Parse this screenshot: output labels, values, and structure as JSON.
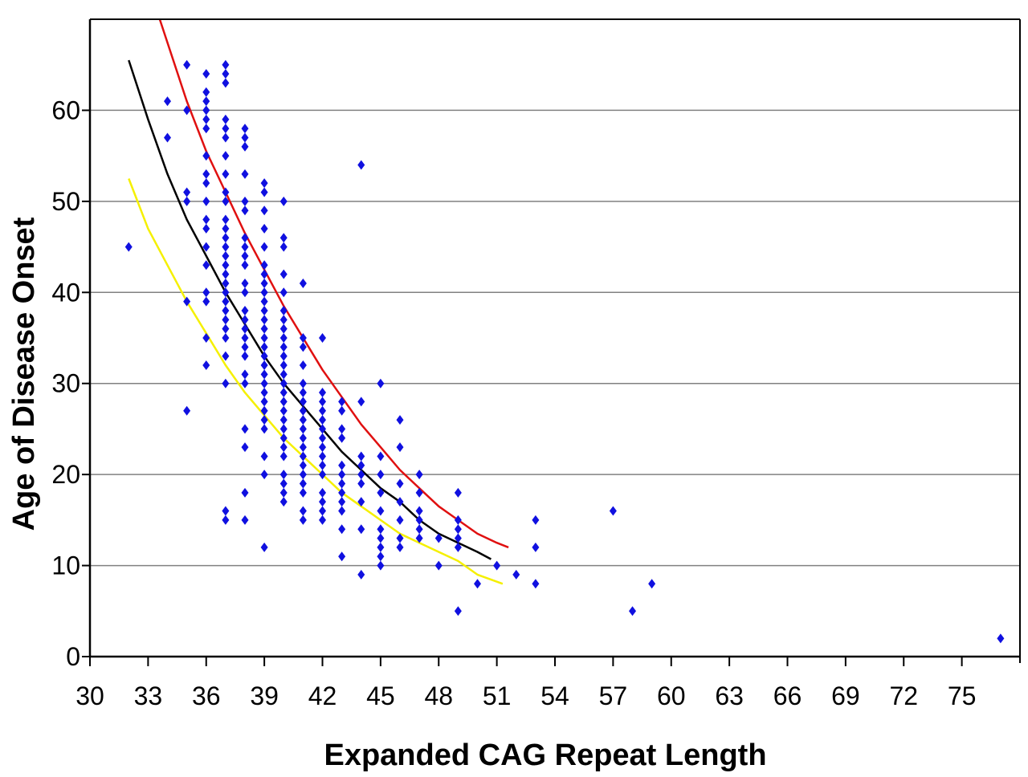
{
  "chart_data": {
    "type": "scatter",
    "title": "",
    "xlabel": "Expanded CAG Repeat Length",
    "ylabel": "Age of Disease Onset",
    "xlim": [
      30,
      78
    ],
    "ylim": [
      0,
      70
    ],
    "x_tick_labels": [
      "30",
      "33",
      "36",
      "39",
      "42",
      "45",
      "48",
      "51",
      "54",
      "57",
      "60",
      "63",
      "66",
      "69",
      "72",
      "75"
    ],
    "y_tick_labels": [
      "0",
      "10",
      "20",
      "30",
      "40",
      "50",
      "60"
    ],
    "grid": "horizontal",
    "legend": "none",
    "series": [
      {
        "kind": "points",
        "color": "#1010e0",
        "marker": "diamond",
        "points": [
          [
            32,
            45
          ],
          [
            34,
            61
          ],
          [
            34,
            57
          ],
          [
            35,
            65
          ],
          [
            35,
            60
          ],
          [
            35,
            51
          ],
          [
            35,
            50
          ],
          [
            35,
            39
          ],
          [
            35,
            27
          ],
          [
            36,
            64
          ],
          [
            36,
            62
          ],
          [
            36,
            61
          ],
          [
            36,
            60
          ],
          [
            36,
            59
          ],
          [
            36,
            58
          ],
          [
            36,
            55
          ],
          [
            36,
            53
          ],
          [
            36,
            52
          ],
          [
            36,
            50
          ],
          [
            36,
            48
          ],
          [
            36,
            47
          ],
          [
            36,
            45
          ],
          [
            36,
            43
          ],
          [
            36,
            40
          ],
          [
            36,
            39
          ],
          [
            36,
            35
          ],
          [
            36,
            32
          ],
          [
            37,
            65
          ],
          [
            37,
            64
          ],
          [
            37,
            63
          ],
          [
            37,
            59
          ],
          [
            37,
            58
          ],
          [
            37,
            57
          ],
          [
            37,
            55
          ],
          [
            37,
            53
          ],
          [
            37,
            51
          ],
          [
            37,
            50
          ],
          [
            37,
            48
          ],
          [
            37,
            47
          ],
          [
            37,
            46
          ],
          [
            37,
            45
          ],
          [
            37,
            44
          ],
          [
            37,
            43
          ],
          [
            37,
            42
          ],
          [
            37,
            41
          ],
          [
            37,
            40
          ],
          [
            37,
            39
          ],
          [
            37,
            38
          ],
          [
            37,
            37
          ],
          [
            37,
            36
          ],
          [
            37,
            35
          ],
          [
            37,
            33
          ],
          [
            37,
            30
          ],
          [
            37,
            16
          ],
          [
            37,
            15
          ],
          [
            38,
            58
          ],
          [
            38,
            57
          ],
          [
            38,
            56
          ],
          [
            38,
            53
          ],
          [
            38,
            50
          ],
          [
            38,
            49
          ],
          [
            38,
            46
          ],
          [
            38,
            45
          ],
          [
            38,
            44
          ],
          [
            38,
            43
          ],
          [
            38,
            41
          ],
          [
            38,
            40
          ],
          [
            38,
            38
          ],
          [
            38,
            37
          ],
          [
            38,
            36
          ],
          [
            38,
            35
          ],
          [
            38,
            34
          ],
          [
            38,
            33
          ],
          [
            38,
            31
          ],
          [
            38,
            30
          ],
          [
            38,
            25
          ],
          [
            38,
            23
          ],
          [
            38,
            18
          ],
          [
            38,
            15
          ],
          [
            39,
            52
          ],
          [
            39,
            51
          ],
          [
            39,
            49
          ],
          [
            39,
            47
          ],
          [
            39,
            45
          ],
          [
            39,
            43
          ],
          [
            39,
            42
          ],
          [
            39,
            41
          ],
          [
            39,
            40
          ],
          [
            39,
            39
          ],
          [
            39,
            38
          ],
          [
            39,
            37
          ],
          [
            39,
            36
          ],
          [
            39,
            35
          ],
          [
            39,
            34
          ],
          [
            39,
            33
          ],
          [
            39,
            32
          ],
          [
            39,
            31
          ],
          [
            39,
            30
          ],
          [
            39,
            29
          ],
          [
            39,
            28
          ],
          [
            39,
            27
          ],
          [
            39,
            26
          ],
          [
            39,
            25
          ],
          [
            39,
            22
          ],
          [
            39,
            20
          ],
          [
            39,
            12
          ],
          [
            40,
            50
          ],
          [
            40,
            46
          ],
          [
            40,
            45
          ],
          [
            40,
            42
          ],
          [
            40,
            40
          ],
          [
            40,
            38
          ],
          [
            40,
            37
          ],
          [
            40,
            36
          ],
          [
            40,
            35
          ],
          [
            40,
            34
          ],
          [
            40,
            33
          ],
          [
            40,
            32
          ],
          [
            40,
            31
          ],
          [
            40,
            30
          ],
          [
            40,
            29
          ],
          [
            40,
            28
          ],
          [
            40,
            27
          ],
          [
            40,
            26
          ],
          [
            40,
            25
          ],
          [
            40,
            24
          ],
          [
            40,
            23
          ],
          [
            40,
            22
          ],
          [
            40,
            20
          ],
          [
            40,
            19
          ],
          [
            40,
            18
          ],
          [
            40,
            17
          ],
          [
            41,
            41
          ],
          [
            41,
            35
          ],
          [
            41,
            34
          ],
          [
            41,
            32
          ],
          [
            41,
            30
          ],
          [
            41,
            29
          ],
          [
            41,
            28
          ],
          [
            41,
            27
          ],
          [
            41,
            26
          ],
          [
            41,
            25
          ],
          [
            41,
            24
          ],
          [
            41,
            23
          ],
          [
            41,
            22
          ],
          [
            41,
            21
          ],
          [
            41,
            20
          ],
          [
            41,
            19
          ],
          [
            41,
            18
          ],
          [
            41,
            16
          ],
          [
            41,
            15
          ],
          [
            42,
            35
          ],
          [
            42,
            29
          ],
          [
            42,
            28
          ],
          [
            42,
            27
          ],
          [
            42,
            26
          ],
          [
            42,
            25
          ],
          [
            42,
            24
          ],
          [
            42,
            23
          ],
          [
            42,
            22
          ],
          [
            42,
            21
          ],
          [
            42,
            20
          ],
          [
            42,
            18
          ],
          [
            42,
            17
          ],
          [
            42,
            16
          ],
          [
            42,
            15
          ],
          [
            43,
            28
          ],
          [
            43,
            27
          ],
          [
            43,
            25
          ],
          [
            43,
            24
          ],
          [
            43,
            21
          ],
          [
            43,
            20
          ],
          [
            43,
            19
          ],
          [
            43,
            18
          ],
          [
            43,
            17
          ],
          [
            43,
            16
          ],
          [
            43,
            14
          ],
          [
            43,
            11
          ],
          [
            44,
            54
          ],
          [
            44,
            28
          ],
          [
            44,
            22
          ],
          [
            44,
            21
          ],
          [
            44,
            20
          ],
          [
            44,
            19
          ],
          [
            44,
            17
          ],
          [
            44,
            14
          ],
          [
            44,
            9
          ],
          [
            45,
            30
          ],
          [
            45,
            22
          ],
          [
            45,
            20
          ],
          [
            45,
            18
          ],
          [
            45,
            16
          ],
          [
            45,
            14
          ],
          [
            45,
            13
          ],
          [
            45,
            12
          ],
          [
            45,
            11
          ],
          [
            45,
            10
          ],
          [
            46,
            26
          ],
          [
            46,
            23
          ],
          [
            46,
            19
          ],
          [
            46,
            17
          ],
          [
            46,
            15
          ],
          [
            46,
            13
          ],
          [
            46,
            12
          ],
          [
            47,
            20
          ],
          [
            47,
            18
          ],
          [
            47,
            16
          ],
          [
            47,
            15
          ],
          [
            47,
            14
          ],
          [
            47,
            13
          ],
          [
            48,
            13
          ],
          [
            48,
            10
          ],
          [
            49,
            18
          ],
          [
            49,
            15
          ],
          [
            49,
            14
          ],
          [
            49,
            13
          ],
          [
            49,
            12
          ],
          [
            49,
            5
          ],
          [
            50,
            8
          ],
          [
            51,
            10
          ],
          [
            52,
            9
          ],
          [
            53,
            15
          ],
          [
            53,
            12
          ],
          [
            53,
            8
          ],
          [
            57,
            16
          ],
          [
            58,
            5
          ],
          [
            59,
            8
          ],
          [
            77,
            2
          ]
        ]
      },
      {
        "kind": "curve",
        "color": "#e01010",
        "points": [
          [
            33.6,
            70
          ],
          [
            35,
            61
          ],
          [
            36,
            55.5
          ],
          [
            37,
            51
          ],
          [
            38,
            46.5
          ],
          [
            39,
            42.5
          ],
          [
            40,
            38.5
          ],
          [
            41,
            35
          ],
          [
            42,
            31.5
          ],
          [
            43,
            28.5
          ],
          [
            44,
            25.5
          ],
          [
            45,
            23
          ],
          [
            46,
            20.5
          ],
          [
            47,
            18.5
          ],
          [
            48,
            16.5
          ],
          [
            49,
            15
          ],
          [
            50,
            13.5
          ],
          [
            51,
            12.5
          ],
          [
            51.6,
            12
          ]
        ]
      },
      {
        "kind": "curve",
        "color": "#000000",
        "points": [
          [
            32,
            65.5
          ],
          [
            33,
            59
          ],
          [
            34,
            53
          ],
          [
            35,
            48
          ],
          [
            36,
            44
          ],
          [
            37,
            40
          ],
          [
            38,
            36.5
          ],
          [
            39,
            33
          ],
          [
            40,
            30
          ],
          [
            41,
            27.5
          ],
          [
            42,
            25
          ],
          [
            43,
            22.5
          ],
          [
            44,
            20.5
          ],
          [
            45,
            18.5
          ],
          [
            46,
            17
          ],
          [
            47,
            15
          ],
          [
            48,
            13.5
          ],
          [
            49,
            12.5
          ],
          [
            50,
            11.5
          ],
          [
            50.7,
            10.7
          ]
        ]
      },
      {
        "kind": "curve",
        "color": "#f5f000",
        "points": [
          [
            32,
            52.5
          ],
          [
            33,
            47
          ],
          [
            34,
            43
          ],
          [
            35,
            39
          ],
          [
            36,
            35.5
          ],
          [
            37,
            32
          ],
          [
            38,
            29
          ],
          [
            39,
            26.5
          ],
          [
            40,
            24
          ],
          [
            41,
            22
          ],
          [
            42,
            20
          ],
          [
            43,
            18
          ],
          [
            44,
            16.5
          ],
          [
            45,
            15
          ],
          [
            46,
            13.5
          ],
          [
            47,
            12.5
          ],
          [
            48,
            11.5
          ],
          [
            49,
            10.5
          ],
          [
            50,
            9
          ],
          [
            51.3,
            8
          ]
        ]
      }
    ]
  }
}
